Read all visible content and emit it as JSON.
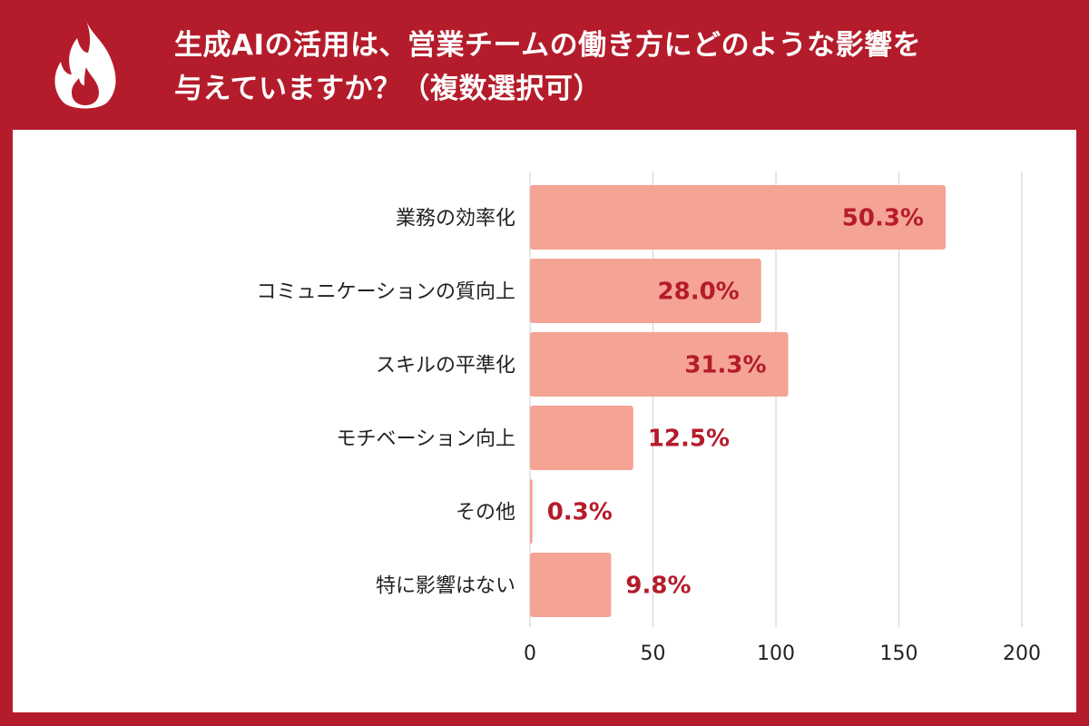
{
  "header": {
    "title_line1": "生成AIの活用は、営業チームの働き方にどのような影響を",
    "title_line2": "与えていますか？（複数選択可）",
    "logo_icon": "flame-icon"
  },
  "colors": {
    "frame": "#b41c2b",
    "bar": "#f5a394",
    "bar_edge": "#ee8e7e",
    "value_label": "#b41c2b",
    "grid": "#d6d6d6",
    "category_text": "#222222"
  },
  "chart_data": {
    "type": "bar",
    "orientation": "horizontal",
    "categories": [
      "業務の効率化",
      "コミュニケーションの質向上",
      "スキルの平準化",
      "モチベーション向上",
      "その他",
      "特に影響はない"
    ],
    "values": [
      169,
      94,
      105,
      42,
      1,
      33
    ],
    "data_labels": [
      "50.3%",
      "28.0%",
      "31.3%",
      "12.5%",
      "0.3%",
      "9.8%"
    ],
    "xlim": [
      0,
      200
    ],
    "xticks": [
      0,
      50,
      100,
      150,
      200
    ],
    "grid": true,
    "title": "",
    "xlabel": "",
    "ylabel": ""
  }
}
